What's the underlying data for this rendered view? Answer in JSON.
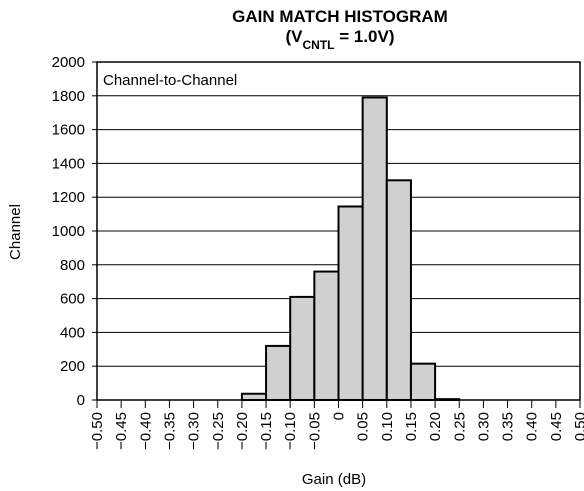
{
  "chart_data": {
    "type": "histogram",
    "title": "GAIN MATCH HISTOGRAM",
    "subtitle_parts": [
      "(V",
      "CNTL",
      " = 1.0V)"
    ],
    "annotation": "Channel-to-Channel",
    "xlabel": "Gain (dB)",
    "ylabel": "Channel",
    "bins": [
      -0.5,
      -0.45,
      -0.4,
      -0.35,
      -0.3,
      -0.25,
      -0.2,
      -0.15,
      -0.1,
      -0.05,
      0,
      0.05,
      0.1,
      0.15,
      0.2,
      0.25,
      0.3,
      0.35,
      0.4,
      0.45,
      0.5
    ],
    "values": [
      0,
      0,
      0,
      0,
      0,
      0,
      37,
      320,
      610,
      760,
      1145,
      1790,
      1300,
      215,
      5,
      0,
      0,
      0,
      0,
      0
    ],
    "color": "#d0d0d0",
    "xlim": [
      -0.5,
      0.5
    ],
    "xticks": [
      {
        "value": -0.5,
        "label": "−0.50"
      },
      {
        "value": -0.45,
        "label": "−0.45"
      },
      {
        "value": -0.4,
        "label": "−0.40"
      },
      {
        "value": -0.35,
        "label": "−0.35"
      },
      {
        "value": -0.3,
        "label": "−0.30"
      },
      {
        "value": -0.25,
        "label": "−0.25"
      },
      {
        "value": -0.2,
        "label": "−0.20"
      },
      {
        "value": -0.15,
        "label": "−0.15"
      },
      {
        "value": -0.1,
        "label": "−0.10"
      },
      {
        "value": -0.05,
        "label": "−0.05"
      },
      0,
      0.05,
      {
        "value": 0.1,
        "label": "0.10"
      },
      0.15,
      {
        "value": 0.2,
        "label": "0.20"
      },
      0.25,
      {
        "value": 0.3,
        "label": "0.30"
      },
      0.35,
      {
        "value": 0.4,
        "label": "0.40"
      },
      0.45,
      {
        "value": 0.5,
        "label": "0.50"
      }
    ],
    "ylim": [
      0,
      2000
    ],
    "yticks": [
      0,
      200,
      400,
      600,
      800,
      1000,
      1200,
      1400,
      1600,
      1800,
      2000
    ],
    "grid": true
  }
}
